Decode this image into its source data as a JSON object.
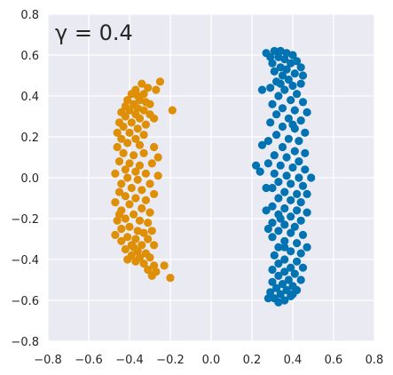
{
  "chart_data": {
    "type": "scatter",
    "title": "γ = 0.4",
    "title_placement": "top-left inside plot",
    "xlabel": "",
    "ylabel": "",
    "xlim": [
      -0.8,
      0.8
    ],
    "ylim": [
      -0.8,
      0.8
    ],
    "x_ticks": [
      -0.8,
      -0.6,
      -0.4,
      -0.2,
      0.0,
      0.2,
      0.4,
      0.6,
      0.8
    ],
    "y_ticks": [
      -0.8,
      -0.6,
      -0.4,
      -0.2,
      0.0,
      0.2,
      0.4,
      0.6,
      0.8
    ],
    "x_tick_labels": [
      "−0.8",
      "−0.6",
      "−0.4",
      "−0.2",
      "0.0",
      "0.2",
      "0.4",
      "0.6",
      "0.8"
    ],
    "y_tick_labels": [
      "−0.8",
      "−0.6",
      "−0.4",
      "−0.2",
      "0.0",
      "0.2",
      "0.4",
      "0.6",
      "0.8"
    ],
    "grid": true,
    "style": {
      "background": "#eaeaf2",
      "grid_color": "#ffffff"
    },
    "series": [
      {
        "color": "#de8f05",
        "points": [
          [
            -0.25,
            0.47
          ],
          [
            -0.27,
            0.43
          ],
          [
            -0.31,
            0.44
          ],
          [
            -0.34,
            0.46
          ],
          [
            -0.37,
            0.43
          ],
          [
            -0.33,
            0.41
          ],
          [
            -0.36,
            0.4
          ],
          [
            -0.39,
            0.41
          ],
          [
            -0.41,
            0.38
          ],
          [
            -0.35,
            0.38
          ],
          [
            -0.32,
            0.37
          ],
          [
            -0.3,
            0.36
          ],
          [
            -0.38,
            0.36
          ],
          [
            -0.42,
            0.35
          ],
          [
            -0.36,
            0.34
          ],
          [
            -0.33,
            0.33
          ],
          [
            -0.19,
            0.33
          ],
          [
            -0.4,
            0.33
          ],
          [
            -0.44,
            0.32
          ],
          [
            -0.3,
            0.31
          ],
          [
            -0.37,
            0.31
          ],
          [
            -0.28,
            0.29
          ],
          [
            -0.42,
            0.3
          ],
          [
            -0.35,
            0.29
          ],
          [
            -0.45,
            0.27
          ],
          [
            -0.39,
            0.27
          ],
          [
            -0.32,
            0.26
          ],
          [
            -0.43,
            0.25
          ],
          [
            -0.36,
            0.24
          ],
          [
            -0.46,
            0.22
          ],
          [
            -0.4,
            0.22
          ],
          [
            -0.33,
            0.21
          ],
          [
            -0.44,
            0.19
          ],
          [
            -0.37,
            0.19
          ],
          [
            -0.41,
            0.17
          ],
          [
            -0.46,
            0.15
          ],
          [
            -0.35,
            0.16
          ],
          [
            -0.28,
            0.15
          ],
          [
            -0.43,
            0.12
          ],
          [
            -0.38,
            0.11
          ],
          [
            -0.33,
            0.12
          ],
          [
            -0.26,
            0.1
          ],
          [
            -0.45,
            0.08
          ],
          [
            -0.4,
            0.07
          ],
          [
            -0.35,
            0.06
          ],
          [
            -0.29,
            0.07
          ],
          [
            -0.42,
            0.04
          ],
          [
            -0.37,
            0.03
          ],
          [
            -0.47,
            0.02
          ],
          [
            -0.32,
            0.02
          ],
          [
            -0.26,
            0.01
          ],
          [
            -0.41,
            0.0
          ],
          [
            -0.36,
            -0.01
          ],
          [
            -0.44,
            -0.03
          ],
          [
            -0.3,
            -0.03
          ],
          [
            -0.39,
            -0.05
          ],
          [
            -0.34,
            -0.06
          ],
          [
            -0.45,
            -0.07
          ],
          [
            -0.42,
            -0.09
          ],
          [
            -0.28,
            -0.08
          ],
          [
            -0.37,
            -0.1
          ],
          [
            -0.32,
            -0.11
          ],
          [
            -0.47,
            -0.12
          ],
          [
            -0.4,
            -0.13
          ],
          [
            -0.34,
            -0.15
          ],
          [
            -0.44,
            -0.16
          ],
          [
            -0.3,
            -0.17
          ],
          [
            -0.38,
            -0.18
          ],
          [
            -0.42,
            -0.2
          ],
          [
            -0.46,
            -0.21
          ],
          [
            -0.35,
            -0.21
          ],
          [
            -0.31,
            -0.22
          ],
          [
            -0.4,
            -0.24
          ],
          [
            -0.44,
            -0.25
          ],
          [
            -0.36,
            -0.26
          ],
          [
            -0.29,
            -0.26
          ],
          [
            -0.33,
            -0.27
          ],
          [
            -0.47,
            -0.28
          ],
          [
            -0.41,
            -0.29
          ],
          [
            -0.37,
            -0.3
          ],
          [
            -0.31,
            -0.3
          ],
          [
            -0.44,
            -0.31
          ],
          [
            -0.39,
            -0.33
          ],
          [
            -0.34,
            -0.33
          ],
          [
            -0.28,
            -0.33
          ],
          [
            -0.42,
            -0.35
          ],
          [
            -0.36,
            -0.36
          ],
          [
            -0.32,
            -0.37
          ],
          [
            -0.39,
            -0.38
          ],
          [
            -0.35,
            -0.39
          ],
          [
            -0.3,
            -0.39
          ],
          [
            -0.37,
            -0.41
          ],
          [
            -0.33,
            -0.42
          ],
          [
            -0.28,
            -0.43
          ],
          [
            -0.23,
            -0.43
          ],
          [
            -0.31,
            -0.45
          ],
          [
            -0.27,
            -0.46
          ],
          [
            -0.29,
            -0.48
          ],
          [
            -0.2,
            -0.49
          ],
          [
            -0.41,
            -0.4
          ],
          [
            -0.38,
            -0.34
          ],
          [
            -0.45,
            -0.18
          ]
        ]
      },
      {
        "color": "#0173b2",
        "points": [
          [
            0.27,
            0.61
          ],
          [
            0.31,
            0.62
          ],
          [
            0.34,
            0.62
          ],
          [
            0.37,
            0.61
          ],
          [
            0.4,
            0.6
          ],
          [
            0.29,
            0.59
          ],
          [
            0.33,
            0.59
          ],
          [
            0.36,
            0.58
          ],
          [
            0.42,
            0.57
          ],
          [
            0.39,
            0.56
          ],
          [
            0.3,
            0.56
          ],
          [
            0.44,
            0.54
          ],
          [
            0.34,
            0.54
          ],
          [
            0.37,
            0.53
          ],
          [
            0.31,
            0.52
          ],
          [
            0.41,
            0.51
          ],
          [
            0.45,
            0.5
          ],
          [
            0.35,
            0.5
          ],
          [
            0.38,
            0.48
          ],
          [
            0.32,
            0.47
          ],
          [
            0.44,
            0.46
          ],
          [
            0.4,
            0.45
          ],
          [
            0.29,
            0.44
          ],
          [
            0.25,
            0.43
          ],
          [
            0.36,
            0.43
          ],
          [
            0.42,
            0.41
          ],
          [
            0.33,
            0.4
          ],
          [
            0.39,
            0.38
          ],
          [
            0.45,
            0.37
          ],
          [
            0.3,
            0.36
          ],
          [
            0.35,
            0.34
          ],
          [
            0.41,
            0.33
          ],
          [
            0.47,
            0.32
          ],
          [
            0.32,
            0.31
          ],
          [
            0.38,
            0.29
          ],
          [
            0.44,
            0.28
          ],
          [
            0.29,
            0.27
          ],
          [
            0.35,
            0.25
          ],
          [
            0.41,
            0.24
          ],
          [
            0.46,
            0.22
          ],
          [
            0.32,
            0.21
          ],
          [
            0.38,
            0.19
          ],
          [
            0.43,
            0.18
          ],
          [
            0.28,
            0.18
          ],
          [
            0.25,
            0.16
          ],
          [
            0.35,
            0.15
          ],
          [
            0.41,
            0.13
          ],
          [
            0.46,
            0.12
          ],
          [
            0.31,
            0.11
          ],
          [
            0.37,
            0.1
          ],
          [
            0.43,
            0.08
          ],
          [
            0.28,
            0.07
          ],
          [
            0.34,
            0.06
          ],
          [
            0.4,
            0.05
          ],
          [
            0.46,
            0.04
          ],
          [
            0.24,
            0.03
          ],
          [
            0.22,
            0.06
          ],
          [
            0.31,
            0.02
          ],
          [
            0.37,
            0.01
          ],
          [
            0.43,
            0.0
          ],
          [
            0.49,
            0.0
          ],
          [
            0.33,
            -0.02
          ],
          [
            0.39,
            -0.03
          ],
          [
            0.45,
            -0.04
          ],
          [
            0.3,
            -0.05
          ],
          [
            0.27,
            -0.05
          ],
          [
            0.36,
            -0.07
          ],
          [
            0.42,
            -0.08
          ],
          [
            0.47,
            -0.08
          ],
          [
            0.33,
            -0.1
          ],
          [
            0.39,
            -0.11
          ],
          [
            0.44,
            -0.12
          ],
          [
            0.3,
            -0.14
          ],
          [
            0.36,
            -0.15
          ],
          [
            0.27,
            -0.16
          ],
          [
            0.42,
            -0.16
          ],
          [
            0.47,
            -0.17
          ],
          [
            0.33,
            -0.18
          ],
          [
            0.39,
            -0.19
          ],
          [
            0.44,
            -0.21
          ],
          [
            0.3,
            -0.22
          ],
          [
            0.36,
            -0.23
          ],
          [
            0.41,
            -0.24
          ],
          [
            0.28,
            -0.25
          ],
          [
            0.33,
            -0.26
          ],
          [
            0.39,
            -0.27
          ],
          [
            0.45,
            -0.28
          ],
          [
            0.3,
            -0.29
          ],
          [
            0.36,
            -0.31
          ],
          [
            0.42,
            -0.32
          ],
          [
            0.47,
            -0.34
          ],
          [
            0.33,
            -0.34
          ],
          [
            0.39,
            -0.36
          ],
          [
            0.44,
            -0.37
          ],
          [
            0.31,
            -0.38
          ],
          [
            0.36,
            -0.4
          ],
          [
            0.42,
            -0.41
          ],
          [
            0.33,
            -0.42
          ],
          [
            0.39,
            -0.44
          ],
          [
            0.45,
            -0.44
          ],
          [
            0.3,
            -0.45
          ],
          [
            0.36,
            -0.46
          ],
          [
            0.41,
            -0.47
          ],
          [
            0.33,
            -0.48
          ],
          [
            0.38,
            -0.5
          ],
          [
            0.44,
            -0.5
          ],
          [
            0.3,
            -0.51
          ],
          [
            0.35,
            -0.52
          ],
          [
            0.4,
            -0.53
          ],
          [
            0.32,
            -0.54
          ],
          [
            0.37,
            -0.55
          ],
          [
            0.42,
            -0.55
          ],
          [
            0.29,
            -0.56
          ],
          [
            0.34,
            -0.57
          ],
          [
            0.39,
            -0.58
          ],
          [
            0.31,
            -0.59
          ],
          [
            0.36,
            -0.6
          ],
          [
            0.33,
            -0.61
          ],
          [
            0.28,
            -0.59
          ],
          [
            0.4,
            -0.57
          ],
          [
            0.34,
            0.46
          ],
          [
            0.4,
            0.26
          ],
          [
            0.36,
            -0.34
          ],
          [
            0.34,
            -0.2
          ]
        ]
      }
    ]
  }
}
